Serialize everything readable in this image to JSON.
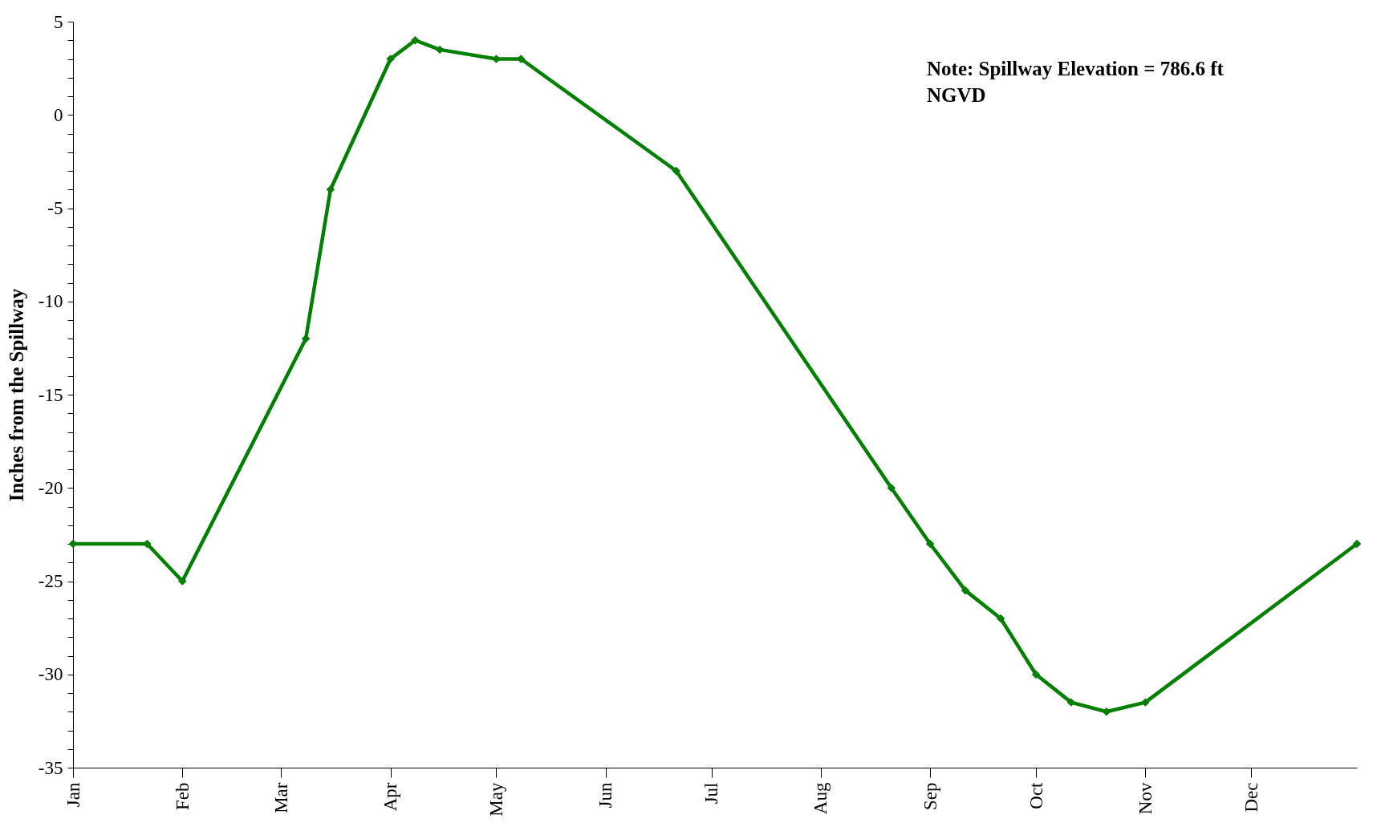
{
  "chart_data": {
    "type": "line",
    "ylabel": "Inches from the Spillway",
    "x": [
      "--01-01",
      "--01-22",
      "--02-01",
      "--03-08",
      "--03-15",
      "--04-01",
      "--04-08",
      "--04-15",
      "--05-01",
      "--05-08",
      "--06-21",
      "--08-21",
      "--09-01",
      "--09-11",
      "--09-21",
      "--10-01",
      "--10-11",
      "--10-21",
      "--11-01",
      "--12-31"
    ],
    "series": [
      {
        "color": "#008000",
        "values": [
          -23,
          -23,
          -25,
          -12,
          -4,
          3,
          4,
          3.5,
          3,
          3,
          -3,
          -20,
          -23,
          -25.5,
          -27,
          -30,
          -31.5,
          -32,
          -31.5,
          -23
        ]
      }
    ],
    "xlim": [
      "--01-01",
      "--12-31"
    ],
    "xticks": [
      {
        "value": "--01-01",
        "label": "Jan"
      },
      {
        "value": "--02-01",
        "label": "Feb"
      },
      {
        "value": "--03-01",
        "label": "Mar"
      },
      {
        "value": "--04-01",
        "label": "Apr"
      },
      {
        "value": "--05-01",
        "label": "May"
      },
      {
        "value": "--06-01",
        "label": "Jun"
      },
      {
        "value": "--07-01",
        "label": "Jul"
      },
      {
        "value": "--08-01",
        "label": "Aug"
      },
      {
        "value": "--09-01",
        "label": "Sep"
      },
      {
        "value": "--10-01",
        "label": "Oct"
      },
      {
        "value": "--11-01",
        "label": "Nov"
      },
      {
        "value": "--12-01",
        "label": "Dec"
      }
    ],
    "ylim": [
      -35,
      5
    ],
    "yticks": [
      -35,
      {
        "value": -34,
        "label": null
      },
      {
        "value": -33,
        "label": null
      },
      {
        "value": -32,
        "label": null
      },
      {
        "value": -31,
        "label": null
      },
      -30,
      {
        "value": -29,
        "label": null
      },
      {
        "value": -28,
        "label": null
      },
      {
        "value": -27,
        "label": null
      },
      {
        "value": -26,
        "label": null
      },
      -25,
      {
        "value": -24,
        "label": null
      },
      {
        "value": -23,
        "label": null
      },
      {
        "value": -22,
        "label": null
      },
      {
        "value": -21,
        "label": null
      },
      -20,
      {
        "value": -19,
        "label": null
      },
      {
        "value": -18,
        "label": null
      },
      {
        "value": -17,
        "label": null
      },
      {
        "value": -16,
        "label": null
      },
      -15,
      {
        "value": -14,
        "label": null
      },
      {
        "value": -13,
        "label": null
      },
      {
        "value": -12,
        "label": null
      },
      {
        "value": -11,
        "label": null
      },
      -10,
      {
        "value": -9,
        "label": null
      },
      {
        "value": -8,
        "label": null
      },
      {
        "value": -7,
        "label": null
      },
      {
        "value": -6,
        "label": null
      },
      -5,
      {
        "value": -4,
        "label": null
      },
      {
        "value": -3,
        "label": null
      },
      {
        "value": -2,
        "label": null
      },
      {
        "value": -1,
        "label": null
      },
      0,
      {
        "value": 1,
        "label": null
      },
      {
        "value": 2,
        "label": null
      },
      {
        "value": 3,
        "label": null
      },
      {
        "value": 4,
        "label": null
      },
      5
    ],
    "annotations": [
      "Note:  Spillway Elevation = 786.6 ft NGVD"
    ],
    "grid": false,
    "legend": false,
    "marker": "diamond",
    "line_style": "solid"
  }
}
